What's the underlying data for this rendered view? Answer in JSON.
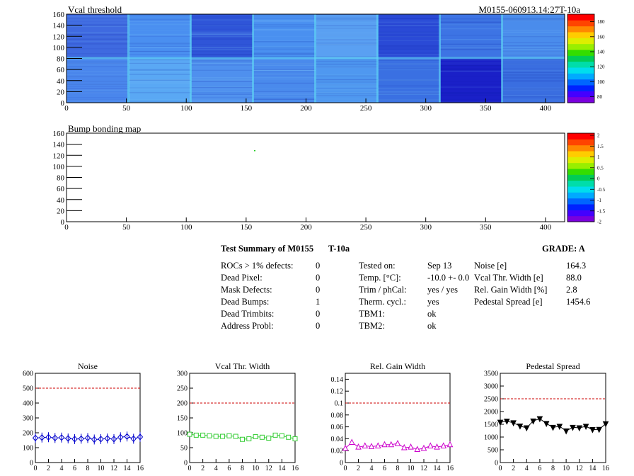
{
  "vcal_map": {
    "title": "Vcal threshold",
    "module_label": "M0155-060913.14:27T-10a",
    "x_ticks": [
      "0",
      "50",
      "100",
      "150",
      "200",
      "250",
      "300",
      "350",
      "400"
    ],
    "y_ticks": [
      "0",
      "20",
      "40",
      "60",
      "80",
      "100",
      "120",
      "140",
      "160"
    ],
    "colorbar_ticks": [
      "80",
      "100",
      "120",
      "140",
      "160",
      "180"
    ]
  },
  "bump_map": {
    "title": "Bump bonding map",
    "x_ticks": [
      "0",
      "50",
      "100",
      "150",
      "200",
      "250",
      "300",
      "350",
      "400"
    ],
    "y_ticks": [
      "0",
      "20",
      "40",
      "60",
      "80",
      "100",
      "120",
      "140",
      "160"
    ],
    "colorbar_ticks": [
      "-2",
      "-1.5",
      "-1",
      "-0.5",
      "0",
      "0.5",
      "1",
      "1.5",
      "2"
    ]
  },
  "summary": {
    "title": "Test Summary of M0155",
    "temp_tag": "T-10a",
    "grade": "GRADE:  A",
    "defects": [
      {
        "label": "ROCs > 1% defects:",
        "value": "0"
      },
      {
        "label": "Dead Pixel:",
        "value": "0"
      },
      {
        "label": "Mask Defects:",
        "value": "0"
      },
      {
        "label": "Dead Bumps:",
        "value": "1"
      },
      {
        "label": "Dead Trimbits:",
        "value": "0"
      },
      {
        "label": "Address Probl:",
        "value": "0"
      }
    ],
    "conditions": [
      {
        "label": "Tested on:",
        "value": "Sep 13"
      },
      {
        "label": "Temp. [°C]:",
        "value": "-10.0 +- 0.0"
      },
      {
        "label": "Trim / phCal:",
        "value": "yes / yes"
      },
      {
        "label": "Therm. cycl.:",
        "value": "yes"
      },
      {
        "label": "TBM1:",
        "value": "ok"
      },
      {
        "label": "TBM2:",
        "value": "ok"
      }
    ],
    "results": [
      {
        "label": "Noise [e]",
        "value": "164.3"
      },
      {
        "label": "Vcal Thr. Width [e]",
        "value": "88.0"
      },
      {
        "label": "Rel. Gain Width [%]",
        "value": "2.8"
      },
      {
        "label": "Pedestal Spread [e]",
        "value": "1454.6"
      }
    ]
  },
  "colors": {
    "noise": "#0000cc",
    "vcal": "#33cc33",
    "gain": "#cc00cc",
    "pedestal": "#000000",
    "limit": "#cc0000"
  },
  "chart_data": [
    {
      "type": "line",
      "title": "Noise",
      "x": [
        0,
        1,
        2,
        3,
        4,
        5,
        6,
        7,
        8,
        9,
        10,
        11,
        12,
        13,
        14,
        15,
        16
      ],
      "values": [
        165,
        168,
        170,
        165,
        168,
        162,
        158,
        160,
        165,
        155,
        158,
        162,
        158,
        170,
        175,
        160,
        172
      ],
      "xlim": [
        0,
        16
      ],
      "ylim": [
        0,
        600
      ],
      "x_ticks": [
        "0",
        "2",
        "4",
        "6",
        "8",
        "10",
        "12",
        "14",
        "16"
      ],
      "y_ticks": [
        "0",
        "100",
        "200",
        "300",
        "400",
        "500",
        "600"
      ],
      "limit": 500,
      "marker": "diamond"
    },
    {
      "type": "line",
      "title": "Vcal Thr. Width",
      "x": [
        0,
        1,
        2,
        3,
        4,
        5,
        6,
        7,
        8,
        9,
        10,
        11,
        12,
        13,
        14,
        15,
        16
      ],
      "values": [
        95,
        92,
        92,
        90,
        88,
        88,
        90,
        88,
        78,
        80,
        87,
        85,
        82,
        92,
        90,
        85,
        80
      ],
      "xlim": [
        0,
        16
      ],
      "ylim": [
        0,
        300
      ],
      "x_ticks": [
        "0",
        "2",
        "4",
        "6",
        "8",
        "10",
        "12",
        "14",
        "16"
      ],
      "y_ticks": [
        "0",
        "50",
        "100",
        "150",
        "200",
        "250",
        "300"
      ],
      "limit": 200,
      "marker": "square"
    },
    {
      "type": "line",
      "title": "Rel. Gain Width",
      "x": [
        0,
        1,
        2,
        3,
        4,
        5,
        6,
        7,
        8,
        9,
        10,
        11,
        12,
        13,
        14,
        15,
        16
      ],
      "values": [
        0.024,
        0.034,
        0.026,
        0.028,
        0.027,
        0.028,
        0.03,
        0.03,
        0.032,
        0.025,
        0.026,
        0.022,
        0.024,
        0.028,
        0.026,
        0.028,
        0.03
      ],
      "xlim": [
        0,
        16
      ],
      "ylim": [
        0,
        0.15
      ],
      "x_ticks": [
        "0",
        "2",
        "4",
        "6",
        "8",
        "10",
        "12",
        "14",
        "16"
      ],
      "y_ticks": [
        "0",
        "0.02",
        "0.04",
        "0.06",
        "0.08",
        "0.1",
        "0.12",
        "0.14"
      ],
      "limit": 0.1,
      "marker": "triangle"
    },
    {
      "type": "line",
      "title": "Pedestal Spread",
      "x": [
        0,
        1,
        2,
        3,
        4,
        5,
        6,
        7,
        8,
        9,
        10,
        11,
        12,
        13,
        14,
        15,
        16
      ],
      "values": [
        1580,
        1620,
        1560,
        1430,
        1360,
        1630,
        1720,
        1530,
        1380,
        1420,
        1240,
        1380,
        1360,
        1420,
        1290,
        1300,
        1520
      ],
      "xlim": [
        0,
        16
      ],
      "ylim": [
        0,
        3500
      ],
      "x_ticks": [
        "0",
        "2",
        "4",
        "6",
        "8",
        "10",
        "12",
        "14",
        "16"
      ],
      "y_ticks": [
        "0",
        "500",
        "1000",
        "1500",
        "2000",
        "2500",
        "3000",
        "3500"
      ],
      "limit": 2500,
      "marker": "triangle-down"
    }
  ]
}
